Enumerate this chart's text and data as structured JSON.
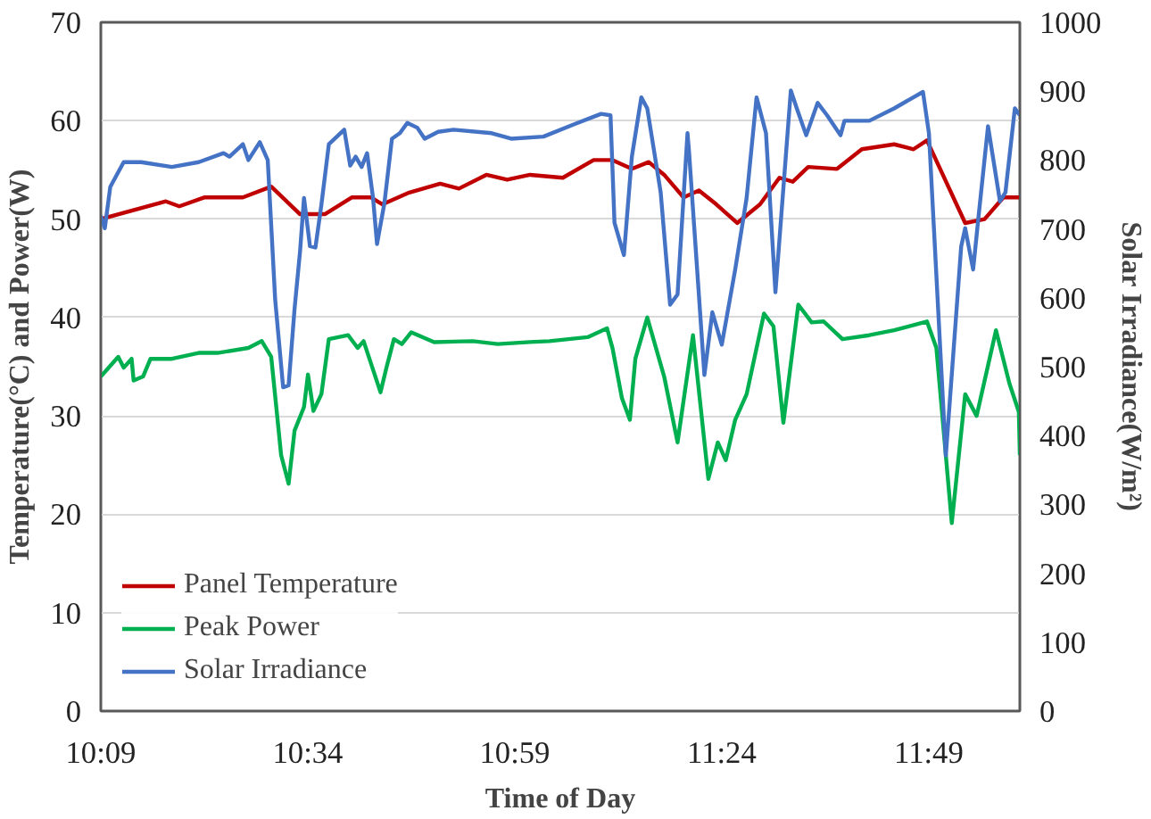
{
  "chart_data": {
    "type": "line",
    "xlabel": "Time of Day",
    "ylabel": "Temperature(°C) and Power(W)",
    "y2label": "Solar Irradiance(W/m²)",
    "xlim": [
      10.15,
      12.0
    ],
    "xticks": [
      {
        "value": 10.15,
        "label": "10:09"
      },
      {
        "value": 10.5667,
        "label": "10:34"
      },
      {
        "value": 10.9833,
        "label": "10:59"
      },
      {
        "value": 11.4,
        "label": "11:24"
      },
      {
        "value": 11.8167,
        "label": "11:49"
      }
    ],
    "ylim": [
      0,
      70
    ],
    "yticks": [
      0,
      10,
      20,
      30,
      40,
      50,
      60,
      70
    ],
    "y2lim": [
      0,
      1000
    ],
    "y2ticks": [
      0,
      100,
      200,
      300,
      400,
      500,
      600,
      700,
      800,
      900,
      1000
    ],
    "grid": "y",
    "legend": "bottom left",
    "line_style": "solid",
    "series": [
      {
        "name": "Panel Temperature",
        "color": "#c00000",
        "x": [
          10.15,
          10.281,
          10.308,
          10.358,
          10.436,
          10.493,
          10.551,
          10.601,
          10.655,
          10.694,
          10.717,
          10.771,
          10.833,
          10.871,
          10.926,
          10.968,
          11.014,
          11.08,
          11.142,
          11.18,
          11.219,
          11.253,
          11.284,
          11.323,
          11.354,
          11.389,
          11.431,
          11.477,
          11.516,
          11.543,
          11.574,
          11.632,
          11.682,
          11.747,
          11.786,
          11.813,
          11.89,
          11.929,
          11.967,
          12.0
        ],
        "values": [
          50.0,
          51.8,
          51.3,
          52.2,
          52.2,
          53.3,
          50.5,
          50.5,
          52.2,
          52.2,
          51.5,
          52.7,
          53.6,
          53.1,
          54.5,
          54.0,
          54.5,
          54.2,
          56.0,
          56.0,
          55.1,
          55.8,
          54.5,
          52.2,
          52.9,
          51.5,
          49.6,
          51.5,
          54.2,
          53.8,
          55.3,
          55.1,
          57.1,
          57.6,
          57.1,
          58.0,
          49.6,
          50.0,
          52.2,
          52.2
        ]
      },
      {
        "name": "Peak Power",
        "color": "#00b050",
        "x": [
          10.15,
          10.185,
          10.196,
          10.212,
          10.216,
          10.235,
          10.25,
          10.293,
          10.347,
          10.385,
          10.447,
          10.474,
          10.493,
          10.513,
          10.528,
          10.54,
          10.559,
          10.567,
          10.578,
          10.594,
          10.609,
          10.648,
          10.667,
          10.679,
          10.713,
          10.725,
          10.74,
          10.756,
          10.775,
          10.821,
          10.899,
          10.949,
          11.014,
          11.053,
          11.13,
          11.169,
          11.18,
          11.199,
          11.215,
          11.226,
          11.25,
          11.284,
          11.311,
          11.342,
          11.373,
          11.392,
          11.408,
          11.427,
          11.45,
          11.485,
          11.504,
          11.524,
          11.554,
          11.581,
          11.605,
          11.643,
          11.697,
          11.747,
          11.813,
          11.832,
          11.863,
          11.89,
          11.913,
          11.952,
          11.979,
          11.998,
          12.0
        ],
        "values": [
          34.0,
          36.0,
          34.9,
          35.8,
          33.6,
          34.0,
          35.8,
          35.8,
          36.4,
          36.4,
          36.9,
          37.6,
          36.0,
          26.0,
          23.1,
          28.5,
          30.9,
          34.2,
          30.5,
          32.2,
          37.8,
          38.2,
          36.9,
          37.6,
          32.4,
          34.9,
          37.8,
          37.3,
          38.5,
          37.5,
          37.6,
          37.3,
          37.5,
          37.6,
          38.0,
          38.9,
          36.9,
          31.8,
          29.6,
          35.8,
          40.0,
          34.0,
          27.3,
          38.2,
          23.6,
          27.3,
          25.5,
          29.6,
          32.2,
          40.4,
          39.1,
          29.3,
          41.3,
          39.5,
          39.6,
          37.8,
          38.2,
          38.7,
          39.6,
          36.9,
          19.1,
          32.2,
          30.0,
          38.7,
          33.3,
          30.4,
          26.0
        ]
      },
      {
        "name": "Solar Irradiance",
        "color": "#4472c4",
        "axis": "y2",
        "x": [
          10.15,
          10.158,
          10.169,
          10.196,
          10.231,
          10.293,
          10.347,
          10.397,
          10.409,
          10.436,
          10.447,
          10.47,
          10.486,
          10.501,
          10.517,
          10.528,
          10.54,
          10.551,
          10.559,
          10.571,
          10.582,
          10.594,
          10.609,
          10.64,
          10.652,
          10.663,
          10.675,
          10.686,
          10.698,
          10.706,
          10.721,
          10.736,
          10.752,
          10.767,
          10.787,
          10.802,
          10.829,
          10.86,
          10.937,
          10.976,
          11.041,
          11.103,
          11.157,
          11.176,
          11.184,
          11.203,
          11.219,
          11.238,
          11.25,
          11.277,
          11.296,
          11.311,
          11.331,
          11.334,
          11.365,
          11.381,
          11.4,
          11.427,
          11.45,
          11.47,
          11.489,
          11.508,
          11.539,
          11.551,
          11.57,
          11.593,
          11.612,
          11.639,
          11.647,
          11.697,
          11.747,
          11.805,
          11.817,
          11.851,
          11.882,
          11.89,
          11.906,
          11.917,
          11.936,
          11.96,
          11.971,
          11.99,
          12.0
        ],
        "values": [
          719,
          701,
          761,
          797,
          797,
          790,
          797,
          810,
          805,
          823,
          800,
          826,
          800,
          597,
          470,
          473,
          584,
          667,
          745,
          675,
          673,
          735,
          823,
          844,
          792,
          805,
          790,
          810,
          745,
          678,
          738,
          831,
          839,
          854,
          847,
          831,
          841,
          844,
          839,
          831,
          834,
          852,
          867,
          865,
          709,
          662,
          805,
          891,
          875,
          753,
          590,
          605,
          839,
          813,
          488,
          579,
          532,
          641,
          745,
          891,
          839,
          608,
          901,
          875,
          836,
          883,
          865,
          836,
          857,
          857,
          875,
          899,
          839,
          371,
          675,
          701,
          641,
          719,
          849,
          740,
          753,
          875,
          865
        ]
      }
    ]
  }
}
